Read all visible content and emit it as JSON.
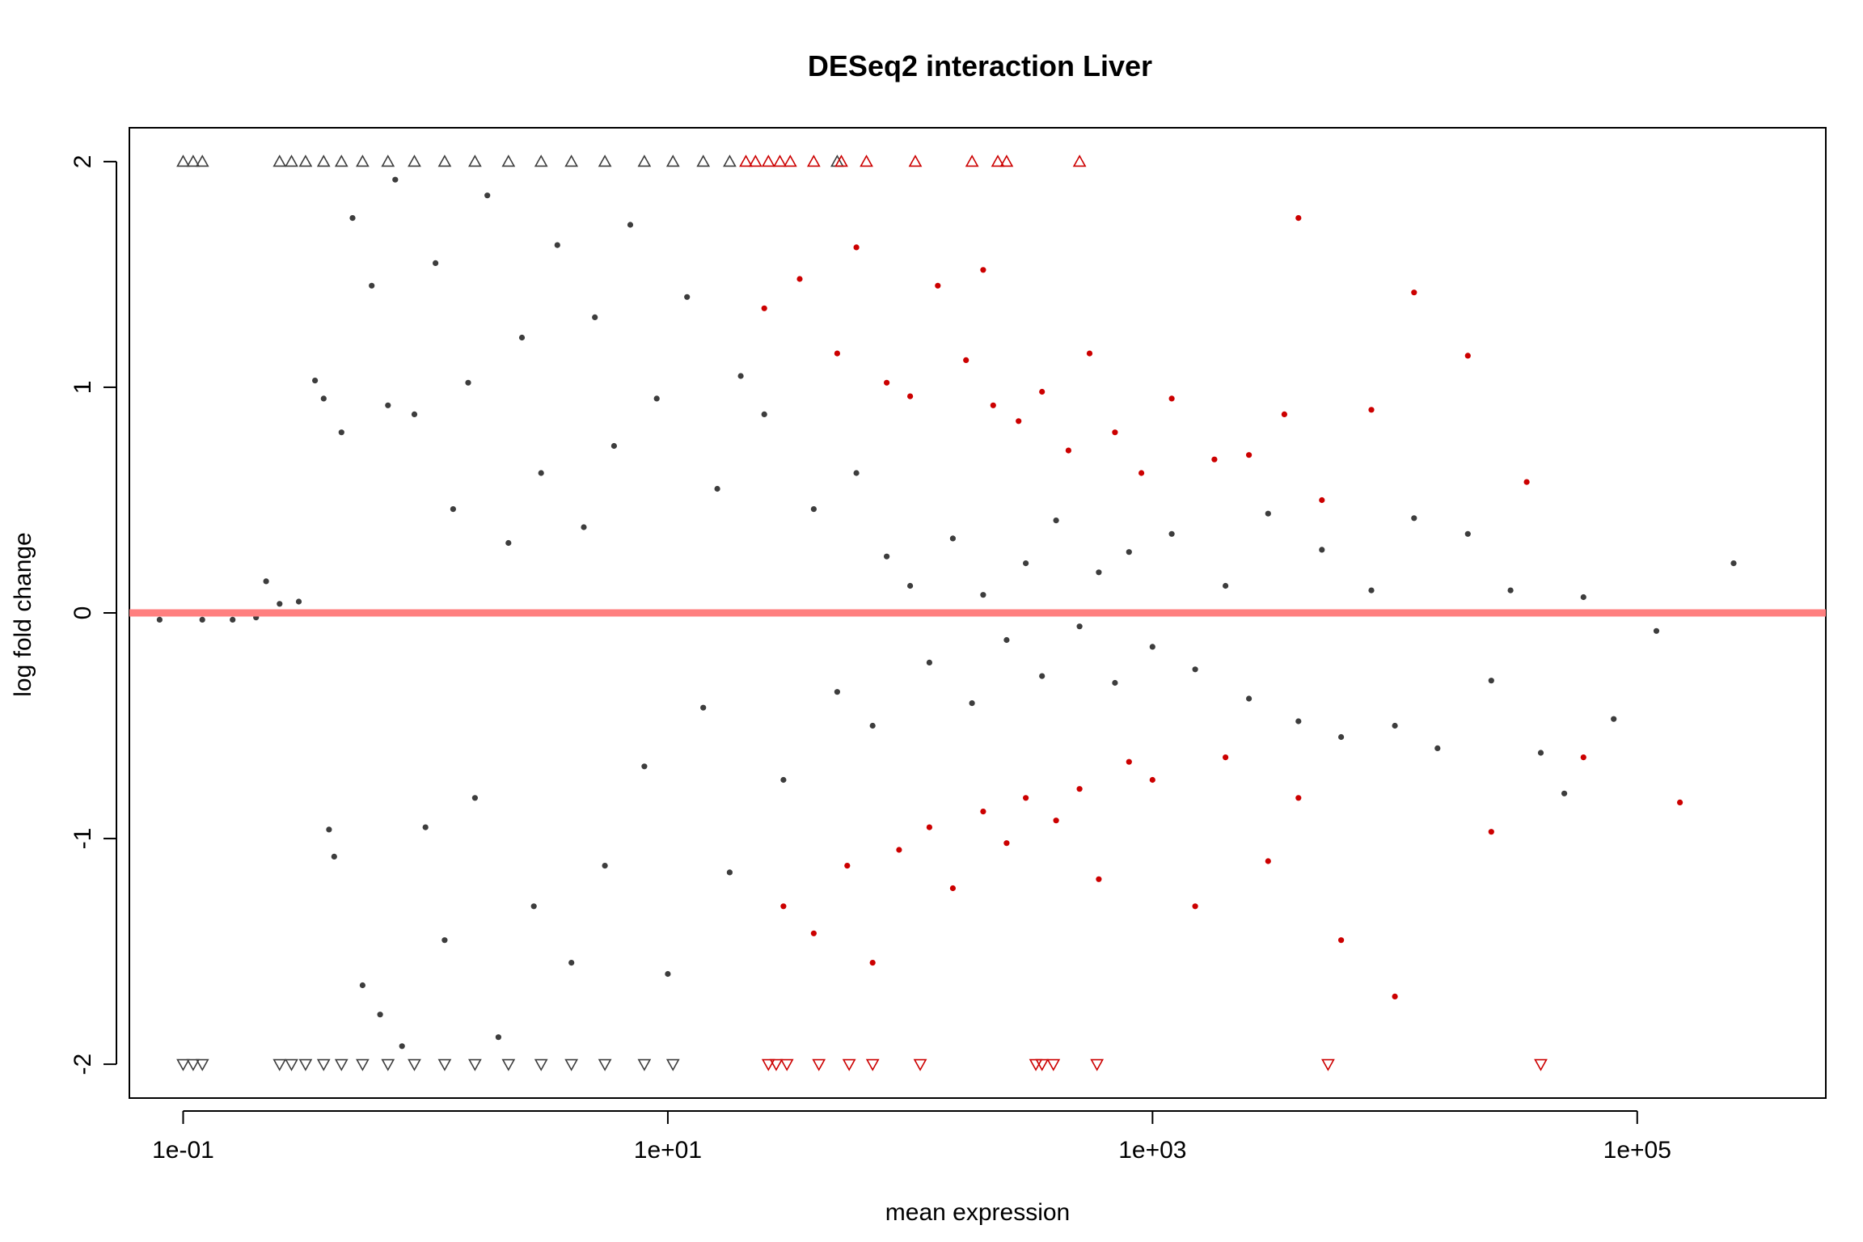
{
  "chart_data": {
    "type": "scatter",
    "title": "DESeq2 interaction Liver",
    "xlabel": "mean expression",
    "ylabel": "log fold change",
    "x_scale": "log10",
    "xlim": [
      0.06,
      600000
    ],
    "ylim": [
      -2.15,
      2.15
    ],
    "x_ticks": [
      {
        "value": 0.1,
        "label": "1e-01"
      },
      {
        "value": 10,
        "label": "1e+01"
      },
      {
        "value": 1000,
        "label": "1e+03"
      },
      {
        "value": 100000,
        "label": "1e+05"
      }
    ],
    "y_ticks": [
      {
        "value": -2,
        "label": "-2"
      },
      {
        "value": -1,
        "label": "-1"
      },
      {
        "value": 0,
        "label": "0"
      },
      {
        "value": 1,
        "label": "1"
      },
      {
        "value": 2,
        "label": "2"
      }
    ],
    "reference_line": {
      "y": 0,
      "color": "#ff7f7f"
    },
    "grid": false,
    "colors": {
      "not_significant": "#3d3d3d",
      "significant": "#cc0000"
    },
    "series": [
      {
        "group": "not_significant",
        "color": "#3d3d3d",
        "points": [
          [
            0.08,
            -0.03
          ],
          [
            0.12,
            -0.03
          ],
          [
            0.16,
            -0.03
          ],
          [
            0.2,
            -0.02
          ],
          [
            0.22,
            0.14
          ],
          [
            0.25,
            0.04
          ],
          [
            0.3,
            0.05
          ],
          [
            0.35,
            1.03
          ],
          [
            0.38,
            0.95
          ],
          [
            0.4,
            -0.96
          ],
          [
            0.42,
            -1.08
          ],
          [
            0.45,
            0.8
          ],
          [
            0.5,
            1.75
          ],
          [
            0.55,
            -1.65
          ],
          [
            0.6,
            1.45
          ],
          [
            0.65,
            -1.78
          ],
          [
            0.7,
            0.92
          ],
          [
            0.75,
            1.92
          ],
          [
            0.8,
            -1.92
          ],
          [
            0.9,
            0.88
          ],
          [
            1.0,
            -0.95
          ],
          [
            1.1,
            1.55
          ],
          [
            1.2,
            -1.45
          ],
          [
            1.3,
            0.46
          ],
          [
            1.5,
            1.02
          ],
          [
            1.6,
            -0.82
          ],
          [
            1.8,
            1.85
          ],
          [
            2.0,
            -1.88
          ],
          [
            2.2,
            0.31
          ],
          [
            2.5,
            1.22
          ],
          [
            2.8,
            -1.3
          ],
          [
            3.0,
            0.62
          ],
          [
            3.5,
            1.63
          ],
          [
            4.0,
            -1.55
          ],
          [
            4.5,
            0.38
          ],
          [
            5.0,
            1.31
          ],
          [
            5.5,
            -1.12
          ],
          [
            6.0,
            0.74
          ],
          [
            7.0,
            1.72
          ],
          [
            8.0,
            -0.68
          ],
          [
            9.0,
            0.95
          ],
          [
            10.0,
            -1.6
          ],
          [
            12.0,
            1.4
          ],
          [
            14.0,
            -0.42
          ],
          [
            16.0,
            0.55
          ],
          [
            18.0,
            -1.15
          ],
          [
            20.0,
            1.05
          ],
          [
            25.0,
            0.88
          ],
          [
            30.0,
            -0.74
          ],
          [
            40.0,
            0.46
          ],
          [
            50.0,
            -0.35
          ],
          [
            60.0,
            0.62
          ],
          [
            70.0,
            -0.5
          ],
          [
            80.0,
            0.25
          ],
          [
            100.0,
            0.12
          ],
          [
            120.0,
            -0.22
          ],
          [
            150.0,
            0.33
          ],
          [
            180.0,
            -0.4
          ],
          [
            200.0,
            0.08
          ],
          [
            250.0,
            -0.12
          ],
          [
            300.0,
            0.22
          ],
          [
            350.0,
            -0.28
          ],
          [
            400.0,
            0.41
          ],
          [
            500.0,
            -0.06
          ],
          [
            600.0,
            0.18
          ],
          [
            700.0,
            -0.31
          ],
          [
            800.0,
            0.27
          ],
          [
            1000.0,
            -0.15
          ],
          [
            1200.0,
            0.35
          ],
          [
            1500.0,
            -0.25
          ],
          [
            2000.0,
            0.12
          ],
          [
            2500.0,
            -0.38
          ],
          [
            3000.0,
            0.44
          ],
          [
            4000.0,
            -0.48
          ],
          [
            5000.0,
            0.28
          ],
          [
            6000.0,
            -0.55
          ],
          [
            8000.0,
            0.1
          ],
          [
            10000.0,
            -0.5
          ],
          [
            12000.0,
            0.42
          ],
          [
            15000.0,
            -0.6
          ],
          [
            20000.0,
            0.35
          ],
          [
            25000.0,
            -0.3
          ],
          [
            30000.0,
            0.1
          ],
          [
            40000.0,
            -0.62
          ],
          [
            50000.0,
            -0.8
          ],
          [
            60000.0,
            0.07
          ],
          [
            80000.0,
            -0.47
          ],
          [
            120000.0,
            -0.08
          ],
          [
            250000.0,
            0.22
          ]
        ]
      },
      {
        "group": "significant",
        "color": "#cc0000",
        "points": [
          [
            25.0,
            1.35
          ],
          [
            30.0,
            -1.3
          ],
          [
            35.0,
            1.48
          ],
          [
            40.0,
            -1.42
          ],
          [
            50.0,
            1.15
          ],
          [
            55.0,
            -1.12
          ],
          [
            60.0,
            1.62
          ],
          [
            70.0,
            -1.55
          ],
          [
            80.0,
            1.02
          ],
          [
            90.0,
            -1.05
          ],
          [
            100.0,
            0.96
          ],
          [
            120.0,
            -0.95
          ],
          [
            130.0,
            1.45
          ],
          [
            150.0,
            -1.22
          ],
          [
            170.0,
            1.12
          ],
          [
            200.0,
            -0.88
          ],
          [
            220.0,
            0.92
          ],
          [
            250.0,
            -1.02
          ],
          [
            280.0,
            0.85
          ],
          [
            300.0,
            -0.82
          ],
          [
            350.0,
            0.98
          ],
          [
            400.0,
            -0.92
          ],
          [
            450.0,
            0.72
          ],
          [
            500.0,
            -0.78
          ],
          [
            550.0,
            1.15
          ],
          [
            600.0,
            -1.18
          ],
          [
            700.0,
            0.8
          ],
          [
            800.0,
            -0.66
          ],
          [
            900.0,
            0.62
          ],
          [
            1000.0,
            -0.74
          ],
          [
            1200.0,
            0.95
          ],
          [
            1500.0,
            -1.3
          ],
          [
            1800.0,
            0.68
          ],
          [
            2000.0,
            -0.64
          ],
          [
            2500.0,
            0.7
          ],
          [
            3000.0,
            -1.1
          ],
          [
            3500.0,
            0.88
          ],
          [
            4000.0,
            -0.82
          ],
          [
            5000.0,
            0.5
          ],
          [
            6000.0,
            -1.45
          ],
          [
            8000.0,
            0.9
          ],
          [
            10000.0,
            -1.7
          ],
          [
            12000.0,
            1.42
          ],
          [
            20000.0,
            1.14
          ],
          [
            25000.0,
            -0.97
          ],
          [
            35000.0,
            0.58
          ],
          [
            60000.0,
            -0.64
          ],
          [
            150000.0,
            -0.84
          ],
          [
            4000.0,
            1.75
          ],
          [
            200.0,
            1.52
          ]
        ]
      }
    ],
    "out_of_range_markers": [
      {
        "group": "not_significant",
        "direction": "up",
        "y": 2,
        "x": [
          0.1,
          0.11,
          0.12,
          0.25,
          0.28,
          0.32,
          0.38,
          0.45,
          0.55,
          0.7,
          0.9,
          1.2,
          1.6,
          2.2,
          3.0,
          4.0,
          5.5,
          8.0,
          10.5,
          14.0,
          18.0,
          50.0
        ]
      },
      {
        "group": "not_significant",
        "direction": "down",
        "y": -2,
        "x": [
          0.1,
          0.11,
          0.12,
          0.25,
          0.28,
          0.32,
          0.38,
          0.45,
          0.55,
          0.7,
          0.9,
          1.2,
          1.6,
          2.2,
          3.0,
          4.0,
          5.5,
          8.0,
          10.5
        ]
      },
      {
        "group": "significant",
        "direction": "up",
        "y": 2,
        "x": [
          21.0,
          23.0,
          26.0,
          29.0,
          32.0,
          40.0,
          52.0,
          66.0,
          105.0,
          180.0,
          230.0,
          250.0,
          500.0
        ]
      },
      {
        "group": "significant",
        "direction": "down",
        "y": -2,
        "x": [
          26.0,
          28.0,
          31.0,
          42.0,
          56.0,
          70.0,
          110.0,
          330.0,
          350.0,
          390.0,
          590.0,
          5300.0,
          40000.0
        ]
      }
    ]
  }
}
